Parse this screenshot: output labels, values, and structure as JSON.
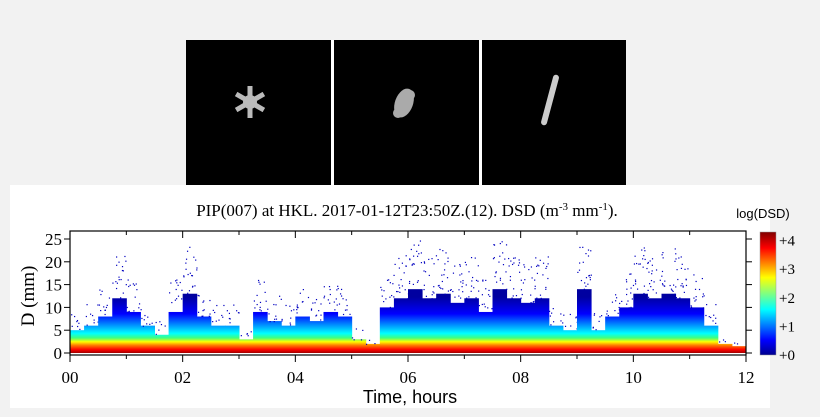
{
  "images": [
    {
      "name": "snowflake-image-1",
      "kind": "stellar"
    },
    {
      "name": "snowflake-image-2",
      "kind": "irregular"
    },
    {
      "name": "snowflake-image-3",
      "kind": "column"
    }
  ],
  "chart_data": {
    "type": "heatmap",
    "title": "PIP(007) at HKL. 2017-01-12T23:50Z.(12). DSD (m",
    "title_sup1": "-3",
    "title_mid": " mm",
    "title_sup2": "-1",
    "title_end": ").",
    "xlabel": "Time, hours",
    "ylabel": "D (mm)",
    "xlim": [
      0,
      12
    ],
    "ylim": [
      0,
      27
    ],
    "xticks": [
      "00",
      "02",
      "04",
      "06",
      "08",
      "10",
      "12"
    ],
    "yticks": [
      "0",
      "5",
      "10",
      "15",
      "20",
      "25"
    ],
    "colorbar": {
      "label": "log(DSD)",
      "range": [
        0,
        4.3
      ],
      "ticks": [
        "+0",
        "+1",
        "+2",
        "+3",
        "+4"
      ],
      "colormap": "jet",
      "colors": [
        "#00008f",
        "#0000ff",
        "#00ffff",
        "#ffff00",
        "#ff0000",
        "#800000"
      ]
    },
    "time_hours": [
      0,
      0.25,
      0.5,
      0.75,
      1,
      1.25,
      1.5,
      1.75,
      2,
      2.25,
      2.5,
      2.75,
      3,
      3.25,
      3.5,
      3.75,
      4,
      4.25,
      4.5,
      4.75,
      5,
      5.25,
      5.5,
      5.75,
      6,
      6.25,
      6.5,
      6.75,
      7,
      7.25,
      7.5,
      7.75,
      8,
      8.25,
      8.5,
      8.75,
      9,
      9.25,
      9.5,
      9.75,
      10,
      10.25,
      10.5,
      10.75,
      11,
      11.25,
      11.5,
      11.75
    ],
    "dense_upper_D_mm": [
      5,
      6,
      8,
      12,
      9,
      6,
      4,
      9,
      13,
      8,
      6,
      6,
      3,
      9,
      7,
      6,
      8,
      7,
      9,
      8,
      3,
      2,
      10,
      12,
      14,
      12,
      13,
      11,
      12,
      9,
      14,
      12,
      11,
      12,
      6,
      5,
      14,
      5,
      8,
      10,
      13,
      12,
      13,
      12,
      10,
      6,
      2,
      1.5
    ]
  }
}
